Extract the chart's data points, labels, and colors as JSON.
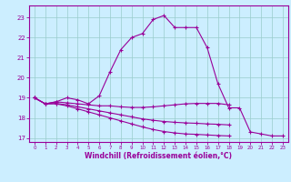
{
  "xlabel": "Windchill (Refroidissement éolien,°C)",
  "background_color": "#cceeff",
  "line_color": "#990099",
  "grid_color": "#99cccc",
  "xlim": [
    -0.5,
    23.5
  ],
  "ylim": [
    16.8,
    23.6
  ],
  "yticks": [
    17,
    18,
    19,
    20,
    21,
    22,
    23
  ],
  "xticks": [
    0,
    1,
    2,
    3,
    4,
    5,
    6,
    7,
    8,
    9,
    10,
    11,
    12,
    13,
    14,
    15,
    16,
    17,
    18,
    19,
    20,
    21,
    22,
    23
  ],
  "series": [
    [
      19.0,
      18.7,
      18.8,
      19.0,
      18.9,
      18.7,
      19.1,
      20.3,
      21.4,
      22.0,
      22.2,
      22.9,
      23.1,
      22.5,
      22.5,
      22.5,
      21.5,
      19.7,
      18.5,
      18.5,
      17.3,
      17.2,
      17.1,
      17.1
    ],
    [
      19.0,
      18.7,
      18.8,
      18.75,
      18.7,
      18.65,
      18.6,
      18.6,
      18.55,
      18.52,
      18.52,
      18.55,
      18.6,
      18.65,
      18.7,
      18.72,
      18.72,
      18.72,
      18.65,
      null,
      null,
      null,
      null,
      null
    ],
    [
      19.0,
      18.7,
      18.72,
      18.65,
      18.55,
      18.45,
      18.35,
      18.25,
      18.15,
      18.05,
      17.95,
      17.88,
      17.82,
      17.78,
      17.75,
      17.73,
      17.7,
      17.68,
      17.65,
      null,
      null,
      null,
      null,
      null
    ],
    [
      19.0,
      18.7,
      18.7,
      18.6,
      18.45,
      18.3,
      18.15,
      18.0,
      17.85,
      17.7,
      17.55,
      17.42,
      17.32,
      17.25,
      17.2,
      17.18,
      17.15,
      17.12,
      17.1,
      null,
      null,
      null,
      null,
      null
    ]
  ]
}
